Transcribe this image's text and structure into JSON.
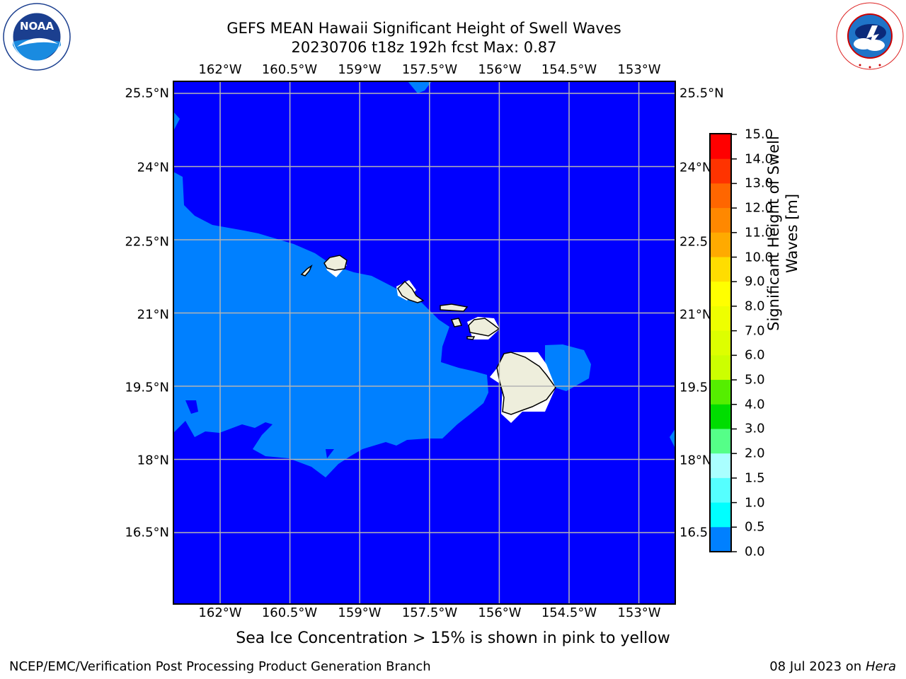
{
  "title": {
    "line1": "GEFS MEAN Hawaii Significant Height of Swell Waves",
    "line2": "20230706 t18z 192h fcst   Max: 0.87"
  },
  "logos": {
    "left": {
      "icon": "noaa-logo-icon",
      "text": "NOAA",
      "ring_text": "NATIONAL OCEANIC AND ATMOSPHERIC ADMINISTRATION U.S. DEPARTMENT OF COMMERCE"
    },
    "right": {
      "icon": "nws-logo-icon",
      "ring_text": "NATIONAL WEATHER SERVICE"
    }
  },
  "map": {
    "lon_ticks": [
      "162°W",
      "160.5°W",
      "159°W",
      "157.5°W",
      "156°W",
      "154.5°W",
      "153°W"
    ],
    "lat_ticks": [
      "25.5°N",
      "24°N",
      "22.5°N",
      "21°N",
      "19.5°N",
      "18°N",
      "16.5°N"
    ],
    "lon_values": [
      -162,
      -160.5,
      -159,
      -157.5,
      -156,
      -154.5,
      -153
    ],
    "lat_values": [
      25.5,
      24,
      22.5,
      21,
      19.5,
      18,
      16.5
    ],
    "colors": {
      "ocean_low": "#0000ff",
      "ocean_mid": "#0080ff",
      "land": "#eeeedc",
      "grid": "#b4b4b4"
    }
  },
  "colorbar": {
    "title": "Significant Height of Swell Waves [m]",
    "levels": [
      "15.0",
      "14.0",
      "13.0",
      "12.0",
      "11.0",
      "10.0",
      "9.0",
      "8.0",
      "7.0",
      "6.0",
      "5.0",
      "4.0",
      "3.0",
      "2.0",
      "1.5",
      "1.0",
      "0.5",
      "0.0"
    ],
    "colors": [
      "#ff0000",
      "#ff3300",
      "#ff6600",
      "#ff8800",
      "#ffaa00",
      "#ffdd00",
      "#ffff00",
      "#eeff00",
      "#ddff00",
      "#ccff00",
      "#55ee00",
      "#00dd00",
      "#55ff88",
      "#aaffff",
      "#55ffff",
      "#00ffff",
      "#0080ff",
      "#0000ff"
    ]
  },
  "caption": "Sea Ice Concentration > 15% is shown in pink to yellow",
  "footer": {
    "left": "NCEP/EMC/Verification Post Processing Product Generation Branch",
    "date": "08 Jul 2023 on ",
    "machine": "Hera"
  }
}
